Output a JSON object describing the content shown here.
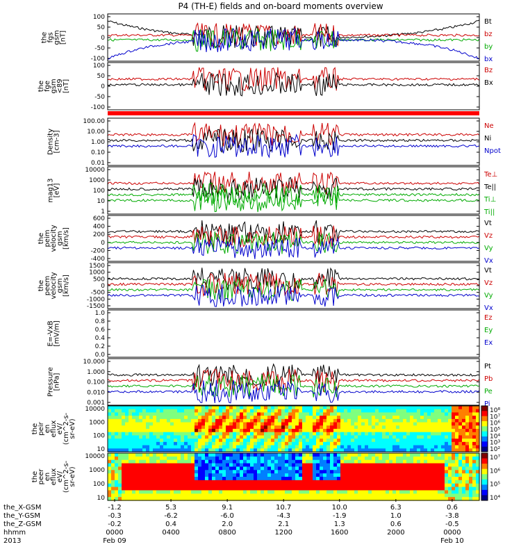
{
  "title": "P4 (TH-E) fields and on-board moments overview",
  "chart_data": [
    {
      "type": "line",
      "id": "fgs",
      "ylabel": [
        "the",
        "fgs",
        "gsm",
        "[nT]"
      ],
      "yticks": [
        "100",
        "50",
        "0",
        "-50",
        "-100"
      ],
      "ylim": [
        -100,
        100
      ],
      "legend": [
        {
          "name": "Bt",
          "color": "#000000"
        },
        {
          "name": "bz",
          "color": "#cc0000"
        },
        {
          "name": "by",
          "color": "#00aa00"
        },
        {
          "name": "bx",
          "color": "#0000cc"
        }
      ]
    },
    {
      "type": "line",
      "id": "fgs-gsm",
      "ylabel": [
        "the",
        "fge",
        "gsm",
        "<89",
        "[nT]"
      ],
      "yticks": [
        "100",
        "50",
        "0",
        "-50",
        "-100"
      ],
      "ylim": [
        -120,
        100
      ],
      "legend": [
        {
          "name": "Bz",
          "color": "#cc0000"
        },
        {
          "name": "Bx",
          "color": "#000000"
        }
      ]
    },
    {
      "type": "line",
      "id": "density",
      "ylabel": [
        "Density",
        "[cm-3]"
      ],
      "yticks": [
        "100.00",
        "10.00",
        "1.00",
        "0.10",
        "0.01"
      ],
      "yscale": "log",
      "ylim": [
        0.01,
        300
      ],
      "legend": [
        {
          "name": "Ne",
          "color": "#cc0000"
        },
        {
          "name": "Ni",
          "color": "#000000"
        },
        {
          "name": "Npot",
          "color": "#0000cc"
        }
      ]
    },
    {
      "type": "line",
      "id": "temperature",
      "ylabel": [
        "mag13",
        "[eV]"
      ],
      "yticks": [
        "10000",
        "1000",
        "100",
        "10",
        "1"
      ],
      "yscale": "log",
      "ylim": [
        1,
        10000
      ],
      "legend": [
        {
          "name": "Te⊥",
          "color": "#cc0000"
        },
        {
          "name": "Te||",
          "color": "#000000"
        },
        {
          "name": "Ti⊥",
          "color": "#00aa00"
        },
        {
          "name": "Ti||",
          "color": "#00aa00"
        }
      ]
    },
    {
      "type": "line",
      "id": "vel-i",
      "ylabel": [
        "the",
        "peim",
        "velocity",
        "gsm",
        "[km/s]"
      ],
      "yticks": [
        "600",
        "400",
        "200",
        "0",
        "-200",
        "-400"
      ],
      "ylim": [
        -400,
        600
      ],
      "legend": [
        {
          "name": "Vt",
          "color": "#000000"
        },
        {
          "name": "Vz",
          "color": "#cc0000"
        },
        {
          "name": "Vy",
          "color": "#00aa00"
        },
        {
          "name": "Vx",
          "color": "#0000cc"
        }
      ]
    },
    {
      "type": "line",
      "id": "vel-e",
      "ylabel": [
        "the",
        "peem",
        "velocity",
        "gsm",
        "[km/s]"
      ],
      "yticks": [
        "1500",
        "1000",
        "500",
        "0",
        "-500",
        "-1000",
        "-1500"
      ],
      "ylim": [
        -1500,
        1500
      ],
      "legend": [
        {
          "name": "Vt",
          "color": "#000000"
        },
        {
          "name": "Vz",
          "color": "#cc0000"
        },
        {
          "name": "Vy",
          "color": "#00aa00"
        },
        {
          "name": "Vx",
          "color": "#0000cc"
        }
      ]
    },
    {
      "type": "line",
      "id": "efield",
      "ylabel": [
        "E=-VxB",
        "[mV/m]"
      ],
      "yticks": [
        "1.0",
        "0.8",
        "0.6",
        "0.4",
        "0.2",
        "0.0"
      ],
      "ylim": [
        0,
        1
      ],
      "legend": [
        {
          "name": "Ez",
          "color": "#cc0000"
        },
        {
          "name": "Ey",
          "color": "#00aa00"
        },
        {
          "name": "Ex",
          "color": "#0000cc"
        }
      ]
    },
    {
      "type": "line",
      "id": "pressure",
      "ylabel": [
        "Pressure",
        "[nPa]"
      ],
      "yticks": [
        "10.000",
        "1.000",
        "0.100",
        "0.010",
        "0.001"
      ],
      "yscale": "log",
      "ylim": [
        0.001,
        10
      ],
      "legend": [
        {
          "name": "Pt",
          "color": "#000000"
        },
        {
          "name": "Pb",
          "color": "#cc0000"
        },
        {
          "name": "Pe",
          "color": "#00aa00"
        },
        {
          "name": "Pi",
          "color": "#0000cc"
        }
      ]
    },
    {
      "type": "heatmap",
      "id": "ion-spec",
      "ylabel": [
        "the",
        "peir",
        "en",
        "eflux",
        "eV/",
        "(cm^2-s-",
        "sr-eV)"
      ],
      "yticks": [
        "10000",
        "1000",
        "100",
        "10"
      ],
      "yscale": "log",
      "colorbar": [
        "10⁸",
        "10⁷",
        "10⁶",
        "10⁵",
        "10⁴",
        "10³",
        "10²"
      ]
    },
    {
      "type": "heatmap",
      "id": "elec-spec",
      "ylabel": [
        "the",
        "peer",
        "en",
        "eflux",
        "eV/",
        "(cm^2-s-",
        "sr-eV)"
      ],
      "yticks": [
        "10000",
        "1000",
        "100",
        "10"
      ],
      "yscale": "log",
      "colorbar": [
        "10⁷",
        "10⁶",
        "10⁵",
        "10⁴"
      ]
    }
  ],
  "xaxis": {
    "rows": [
      {
        "label": "the_X-GSM",
        "values": [
          "-1.2",
          "5.3",
          "9.1",
          "10.7",
          "10.0",
          "6.3",
          "0.6"
        ]
      },
      {
        "label": "the_Y-GSM",
        "values": [
          "-0.3",
          "-6.2",
          "-6.0",
          "-4.3",
          "-1.9",
          "1.0",
          "-3.8"
        ]
      },
      {
        "label": "the_Z-GSM",
        "values": [
          "-0.2",
          "0.4",
          "2.0",
          "2.1",
          "1.3",
          "0.6",
          "-0.5"
        ]
      },
      {
        "label": "hhmm",
        "values": [
          "0000",
          "0400",
          "0800",
          "1200",
          "1600",
          "2000",
          "0000"
        ]
      },
      {
        "label": "2013",
        "values": [
          "Feb 09",
          "",
          "",
          "",
          "",
          "",
          "Feb 10"
        ]
      }
    ]
  }
}
